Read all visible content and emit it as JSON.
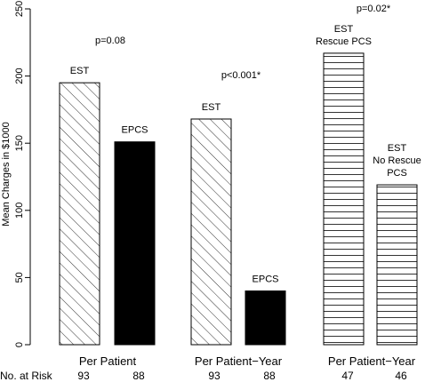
{
  "chart_data": {
    "type": "bar",
    "ylabel": "Mean Charges in $1000",
    "ylim": [
      0,
      250
    ],
    "yticks": [
      0,
      50,
      100,
      150,
      200,
      250
    ],
    "grid": false,
    "bars": [
      {
        "group": 0,
        "value": 195,
        "label": [
          "EST"
        ],
        "fill": "diagonal-hatch"
      },
      {
        "group": 0,
        "value": 151,
        "label": [
          "EPCS"
        ],
        "fill": "solid-black"
      },
      {
        "group": 1,
        "value": 168,
        "label": [
          "EST"
        ],
        "fill": "diagonal-hatch"
      },
      {
        "group": 1,
        "value": 40,
        "label": [
          "EPCS"
        ],
        "fill": "solid-black"
      },
      {
        "group": 2,
        "value": 217,
        "label": [
          "EST",
          "Rescue PCS"
        ],
        "fill": "horizontal-hatch"
      },
      {
        "group": 2,
        "value": 119,
        "label": [
          "EST",
          "No Rescue",
          "PCS"
        ],
        "fill": "horizontal-hatch"
      }
    ],
    "groups": [
      {
        "label": "Per Patient",
        "pvalue": "p=0.08",
        "n": [
          "93",
          "88"
        ]
      },
      {
        "label": "Per Patient−Year",
        "pvalue": "p<0.001*",
        "n": [
          "93",
          "88"
        ]
      },
      {
        "label": "Per Patient−Year",
        "pvalue": "p=0.02*",
        "n": [
          "47",
          "46"
        ]
      }
    ],
    "risk_label": "No. at Risk"
  }
}
